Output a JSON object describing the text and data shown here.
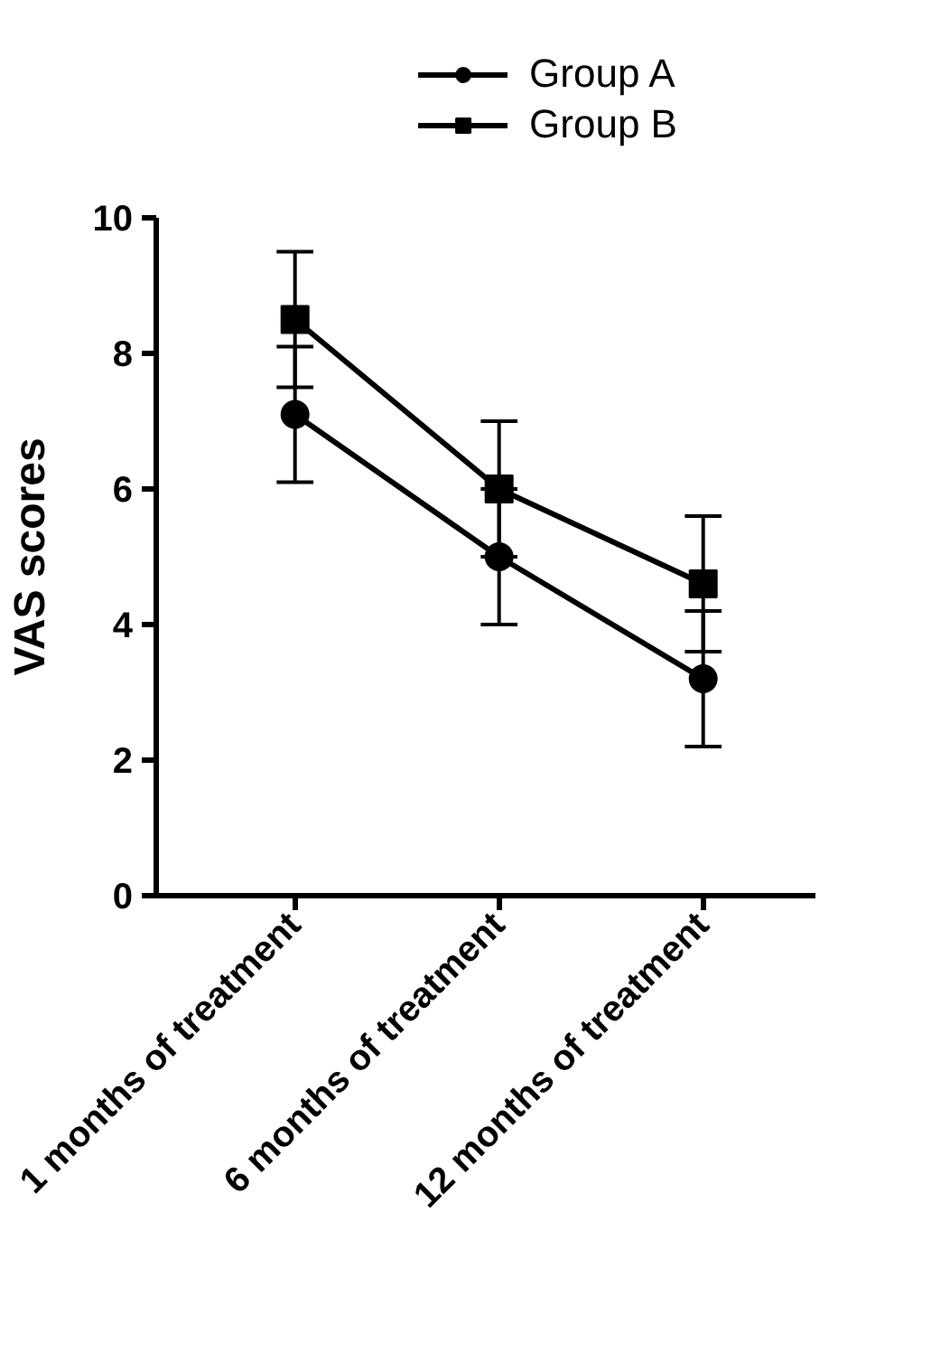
{
  "chart_data": {
    "type": "line",
    "ylabel": "VAS scores",
    "categories": [
      "1 months of treatment",
      "6 months of treatment",
      "12 months of treatment"
    ],
    "series": [
      {
        "name": "Group A",
        "color": "#000000",
        "marker": "circle",
        "values": [
          7.1,
          5.0,
          3.2
        ],
        "errors": [
          1.0,
          1.0,
          1.0
        ]
      },
      {
        "name": "Group B",
        "color": "#000000",
        "marker": "square",
        "values": [
          8.5,
          6.0,
          4.6
        ],
        "errors": [
          1.0,
          1.0,
          1.0
        ]
      }
    ],
    "ylim": [
      0,
      10
    ],
    "yticks": [
      0,
      2,
      4,
      6,
      8,
      10
    ],
    "grid": false,
    "legend": "top",
    "line_style": "solid"
  }
}
